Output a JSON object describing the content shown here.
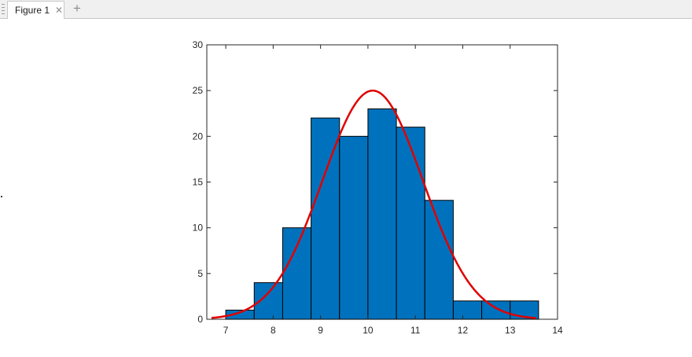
{
  "window": {
    "tab_label": "Figure 1",
    "close_icon": "close-icon",
    "add_tab_icon": "plus-icon"
  },
  "chart_data": {
    "type": "bar",
    "title": "",
    "xlabel": "",
    "ylabel": "",
    "xlim": [
      6.6,
      14.0
    ],
    "ylim": [
      0,
      30
    ],
    "xticks": [
      7,
      8,
      9,
      10,
      11,
      12,
      13,
      14
    ],
    "yticks": [
      0,
      5,
      10,
      15,
      20,
      25,
      30
    ],
    "grid": false,
    "bin_edges": [
      7.0,
      7.6,
      8.2,
      8.8,
      9.4,
      10.0,
      10.6,
      11.2,
      11.8,
      12.4,
      13.0,
      13.6
    ],
    "values": [
      1,
      4,
      10,
      22,
      20,
      23,
      21,
      13,
      2,
      2,
      2
    ],
    "bar_color": "#0072BD",
    "fit_curve": {
      "type": "normal",
      "mean": 10.1,
      "sd": 1.06,
      "peak": 25,
      "x_range": [
        6.7,
        13.55
      ],
      "color": "#E00000"
    }
  }
}
